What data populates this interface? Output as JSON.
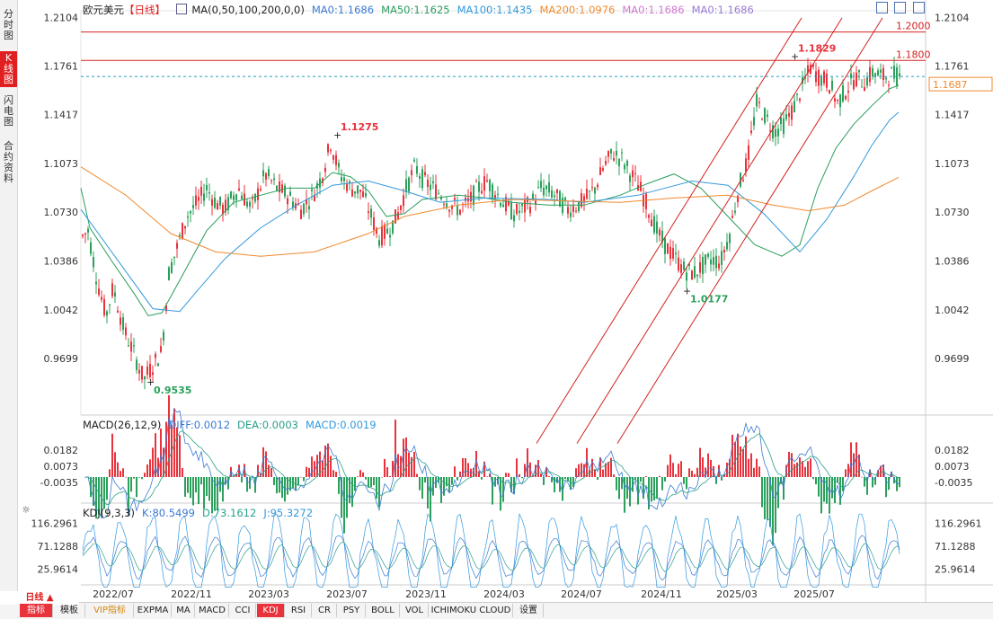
{
  "sidebar": {
    "tabs": [
      {
        "label": "分时图",
        "active": false
      },
      {
        "label": "K线图",
        "active": true
      },
      {
        "label": "闪电图",
        "active": false
      },
      {
        "label": "合约资料",
        "active": false
      }
    ]
  },
  "header": {
    "symbol": "欧元美元",
    "period": "【日线】",
    "ma_legend": [
      {
        "text": "MA(0,50,100,200,0,0)",
        "color": "#222222"
      },
      {
        "text": "MA0:1.1686",
        "color": "#3b7ad1"
      },
      {
        "text": "MA50:1.1625",
        "color": "#2a9d5c"
      },
      {
        "text": "MA100:1.1435",
        "color": "#3399dd"
      },
      {
        "text": "MA200:1.0976",
        "color": "#f08a2e"
      },
      {
        "text": "MA0:1.1686",
        "color": "#d07ad0"
      },
      {
        "text": "MA0:1.1686",
        "color": "#9b7ad9"
      }
    ]
  },
  "macd_legend": [
    {
      "text": "MACD(26,12,9)",
      "color": "#222222"
    },
    {
      "text": "DIFF:0.0012",
      "color": "#3b7ad1"
    },
    {
      "text": "DEA:0.0003",
      "color": "#2aa08a"
    },
    {
      "text": "MACD:0.0019",
      "color": "#3399dd"
    }
  ],
  "kdj_legend": [
    {
      "text": "KDJ(9,3,3)",
      "color": "#222222"
    },
    {
      "text": "K:80.5499",
      "color": "#3b7ad1"
    },
    {
      "text": "D:73.1612",
      "color": "#2aa08a"
    },
    {
      "text": "J:95.3272",
      "color": "#3399dd"
    }
  ],
  "bottom_bar": {
    "period": "日线 ▲",
    "tabs": [
      {
        "label": "指标",
        "selected": true,
        "vip": false
      },
      {
        "label": "模板",
        "selected": false,
        "vip": false
      },
      {
        "label": "VIP指标",
        "selected": false,
        "vip": true
      },
      {
        "label": "EXPMA",
        "selected": false,
        "vip": false
      },
      {
        "label": "MA",
        "selected": false,
        "vip": false
      },
      {
        "label": "MACD",
        "selected": false,
        "vip": false
      },
      {
        "label": "CCI",
        "selected": false,
        "vip": false
      },
      {
        "label": "KDJ",
        "selected": true,
        "vip": false
      },
      {
        "label": "RSI",
        "selected": false,
        "vip": false
      },
      {
        "label": "CR",
        "selected": false,
        "vip": false
      },
      {
        "label": "PSY",
        "selected": false,
        "vip": false
      },
      {
        "label": "BOLL",
        "selected": false,
        "vip": false
      },
      {
        "label": "VOL",
        "selected": false,
        "vip": false
      },
      {
        "label": "ICHIMOKU CLOUD",
        "selected": false,
        "vip": false
      },
      {
        "label": "设置",
        "selected": false,
        "vip": false
      }
    ]
  },
  "chart_data": {
    "type": "candlestick",
    "colors": {
      "up": "#e8323c",
      "down": "#2aa05a",
      "level": "#d42020",
      "channel": "#d42020",
      "ma50": "#2a9d5c",
      "ma100": "#3399dd",
      "ma200": "#f08a2e",
      "current": "#f08a2e"
    },
    "main": {
      "ylim": [
        0.93,
        1.215
      ],
      "yticks": [
        1.2104,
        1.1761,
        1.1417,
        1.1073,
        1.073,
        1.0386,
        1.0042,
        0.9699
      ],
      "xlabels": [
        "2022/07",
        "2022/11",
        "2023/03",
        "2023/07",
        "2023/11",
        "2024/03",
        "2024/07",
        "2024/11",
        "2025/03",
        "2025/07"
      ],
      "levels": [
        {
          "value": 1.2,
          "label": "1.2000"
        },
        {
          "value": 1.18,
          "label": "1.1800"
        }
      ],
      "current_price": 1.1687,
      "current_label": "1.1687",
      "annotations": [
        {
          "label": "1.1275",
          "date": "2023/07",
          "value": 1.1275,
          "kind": "high"
        },
        {
          "label": "0.9535",
          "date": "2022/09",
          "value": 0.9535,
          "kind": "low"
        },
        {
          "label": "1.0177",
          "date": "2025/01",
          "value": 1.0177,
          "kind": "low"
        },
        {
          "label": "1.1829",
          "date": "2025/07",
          "value": 1.1829,
          "kind": "high"
        }
      ],
      "ma_series": [
        {
          "name": "MA50",
          "points": [
            [
              0,
              1.09
            ],
            [
              10,
              1.062
            ],
            [
              35,
              1.038
            ],
            [
              60,
              1.015
            ],
            [
              75,
              1.0
            ],
            [
              90,
              1.002
            ],
            [
              110,
              1.025
            ],
            [
              140,
              1.06
            ],
            [
              170,
              1.08
            ],
            [
              200,
              1.085
            ],
            [
              230,
              1.09
            ],
            [
              260,
              1.09
            ],
            [
              280,
              1.101
            ],
            [
              300,
              1.098
            ],
            [
              320,
              1.088
            ],
            [
              340,
              1.07
            ],
            [
              360,
              1.072
            ],
            [
              380,
              1.082
            ],
            [
              420,
              1.085
            ],
            [
              450,
              1.083
            ],
            [
              480,
              1.08
            ],
            [
              520,
              1.078
            ],
            [
              560,
              1.078
            ],
            [
              600,
              1.085
            ],
            [
              630,
              1.093
            ],
            [
              660,
              1.1
            ],
            [
              690,
              1.09
            ],
            [
              720,
              1.07
            ],
            [
              750,
              1.05
            ],
            [
              780,
              1.042
            ],
            [
              800,
              1.05
            ],
            [
              820,
              1.09
            ],
            [
              840,
              1.118
            ],
            [
              860,
              1.135
            ],
            [
              880,
              1.148
            ],
            [
              900,
              1.16
            ],
            [
              910,
              1.1625
            ]
          ]
        },
        {
          "name": "MA100",
          "points": [
            [
              0,
              1.075
            ],
            [
              40,
              1.04
            ],
            [
              80,
              1.005
            ],
            [
              110,
              1.003
            ],
            [
              130,
              1.018
            ],
            [
              160,
              1.04
            ],
            [
              200,
              1.062
            ],
            [
              240,
              1.078
            ],
            [
              280,
              1.092
            ],
            [
              320,
              1.095
            ],
            [
              360,
              1.088
            ],
            [
              400,
              1.08
            ],
            [
              450,
              1.083
            ],
            [
              520,
              1.082
            ],
            [
              560,
              1.08
            ],
            [
              620,
              1.085
            ],
            [
              680,
              1.095
            ],
            [
              720,
              1.092
            ],
            [
              760,
              1.072
            ],
            [
              800,
              1.045
            ],
            [
              830,
              1.068
            ],
            [
              860,
              1.098
            ],
            [
              880,
              1.12
            ],
            [
              900,
              1.138
            ],
            [
              910,
              1.1435
            ]
          ]
        },
        {
          "name": "MA200",
          "points": [
            [
              0,
              1.105
            ],
            [
              50,
              1.085
            ],
            [
              100,
              1.058
            ],
            [
              150,
              1.045
            ],
            [
              200,
              1.042
            ],
            [
              260,
              1.045
            ],
            [
              320,
              1.058
            ],
            [
              360,
              1.07
            ],
            [
              420,
              1.078
            ],
            [
              480,
              1.082
            ],
            [
              540,
              1.081
            ],
            [
              600,
              1.08
            ],
            [
              660,
              1.083
            ],
            [
              720,
              1.085
            ],
            [
              770,
              1.078
            ],
            [
              810,
              1.074
            ],
            [
              850,
              1.078
            ],
            [
              880,
              1.088
            ],
            [
              910,
              1.0976
            ]
          ]
        }
      ],
      "channel": [
        {
          "from": [
            597,
            0.91
          ],
          "to": [
            892,
            1.21
          ]
        },
        {
          "from": [
            642,
            0.91
          ],
          "to": [
            937,
            1.21
          ]
        },
        {
          "from": [
            687,
            0.91
          ],
          "to": [
            982,
            1.21
          ]
        }
      ]
    },
    "macd": {
      "ylim": [
        -0.025,
        0.025
      ],
      "yticks": [
        0.0182,
        0.0073,
        -0.0035
      ]
    },
    "kdj": {
      "ylim": [
        0,
        130
      ],
      "yticks": [
        116.2961,
        71.1288,
        25.9614
      ]
    },
    "price_path": [
      [
        0,
        1.055
      ],
      [
        8,
        1.06
      ],
      [
        18,
        1.025
      ],
      [
        28,
        1.0
      ],
      [
        36,
        1.02
      ],
      [
        48,
        0.99
      ],
      [
        58,
        0.975
      ],
      [
        70,
        0.955
      ],
      [
        80,
        0.965
      ],
      [
        90,
        0.975
      ],
      [
        98,
        1.03
      ],
      [
        108,
        1.05
      ],
      [
        118,
        1.07
      ],
      [
        130,
        1.08
      ],
      [
        140,
        1.09
      ],
      [
        150,
        1.08
      ],
      [
        160,
        1.075
      ],
      [
        175,
        1.09
      ],
      [
        190,
        1.075
      ],
      [
        205,
        1.1
      ],
      [
        218,
        1.09
      ],
      [
        230,
        1.085
      ],
      [
        245,
        1.075
      ],
      [
        258,
        1.085
      ],
      [
        268,
        1.098
      ],
      [
        278,
        1.122
      ],
      [
        288,
        1.1
      ],
      [
        300,
        1.09
      ],
      [
        312,
        1.088
      ],
      [
        322,
        1.072
      ],
      [
        332,
        1.055
      ],
      [
        342,
        1.06
      ],
      [
        352,
        1.07
      ],
      [
        362,
        1.09
      ],
      [
        372,
        1.105
      ],
      [
        382,
        1.095
      ],
      [
        392,
        1.09
      ],
      [
        402,
        1.085
      ],
      [
        412,
        1.078
      ],
      [
        422,
        1.075
      ],
      [
        432,
        1.08
      ],
      [
        442,
        1.09
      ],
      [
        452,
        1.095
      ],
      [
        462,
        1.087
      ],
      [
        472,
        1.078
      ],
      [
        482,
        1.072
      ],
      [
        492,
        1.075
      ],
      [
        502,
        1.08
      ],
      [
        512,
        1.09
      ],
      [
        522,
        1.088
      ],
      [
        532,
        1.082
      ],
      [
        542,
        1.075
      ],
      [
        552,
        1.078
      ],
      [
        562,
        1.082
      ],
      [
        572,
        1.09
      ],
      [
        582,
        1.105
      ],
      [
        592,
        1.115
      ],
      [
        602,
        1.11
      ],
      [
        612,
        1.1
      ],
      [
        622,
        1.09
      ],
      [
        632,
        1.075
      ],
      [
        642,
        1.058
      ],
      [
        652,
        1.048
      ],
      [
        662,
        1.04
      ],
      [
        672,
        1.032
      ],
      [
        682,
        1.03
      ],
      [
        692,
        1.035
      ],
      [
        702,
        1.04
      ],
      [
        712,
        1.038
      ],
      [
        722,
        1.058
      ],
      [
        732,
        1.09
      ],
      [
        742,
        1.11
      ],
      [
        752,
        1.15
      ],
      [
        762,
        1.14
      ],
      [
        772,
        1.13
      ],
      [
        782,
        1.135
      ],
      [
        792,
        1.145
      ],
      [
        802,
        1.16
      ],
      [
        812,
        1.175
      ],
      [
        822,
        1.168
      ],
      [
        832,
        1.165
      ],
      [
        842,
        1.15
      ],
      [
        852,
        1.16
      ],
      [
        862,
        1.168
      ],
      [
        872,
        1.165
      ],
      [
        882,
        1.172
      ],
      [
        892,
        1.168
      ],
      [
        902,
        1.17
      ],
      [
        910,
        1.1687
      ]
    ]
  }
}
